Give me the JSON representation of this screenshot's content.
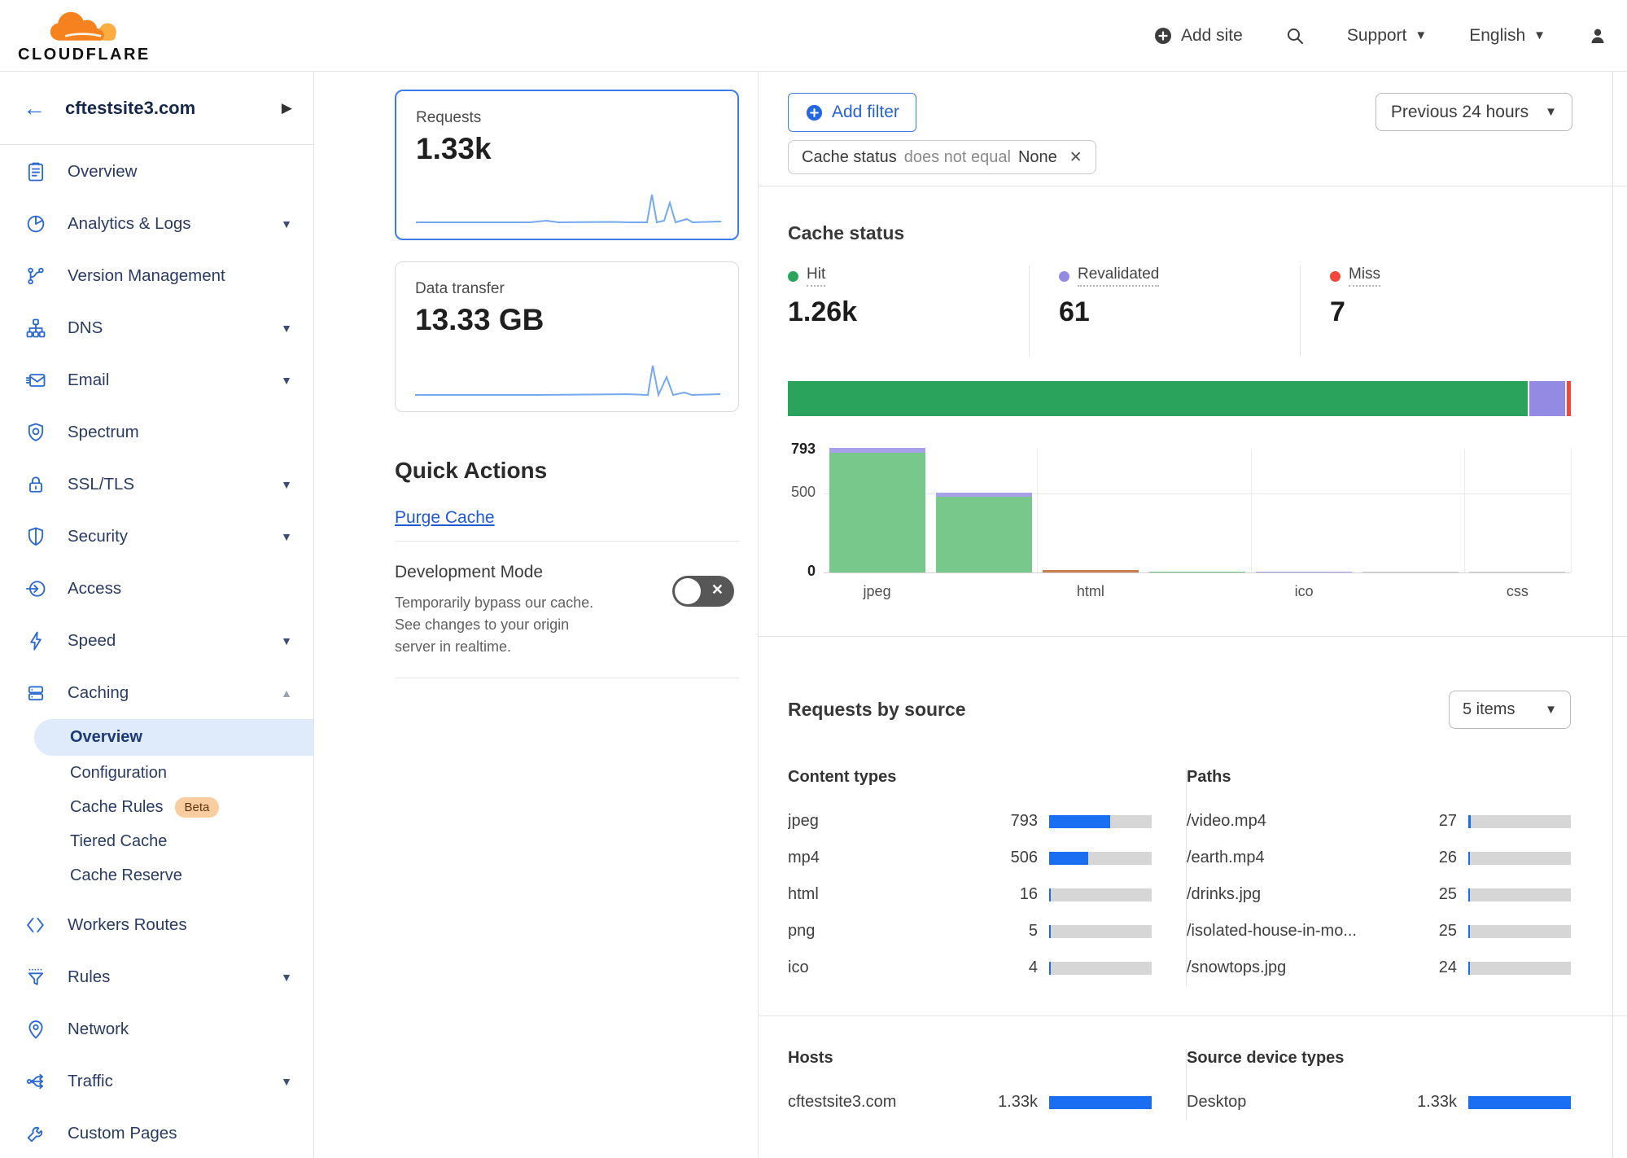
{
  "colors": {
    "accent_blue": "#2f6ede",
    "progress_blue": "#1a6ef2",
    "selected_card_border": "#3b7ce8",
    "hit_green": "#2aa45c",
    "chart_green": "#79c88b",
    "revalidated_purple": "#938ae4",
    "chart_purple": "#a7a1ea",
    "miss_red": "#f2473b",
    "other_orange": "#c97f4f",
    "none_gray": "#c9c9c9",
    "beta_badge_bg": "#f8cda0",
    "beta_badge_text": "#5f370e"
  },
  "header": {
    "logo_text": "CLOUDFLARE",
    "add_site": "Add site",
    "support": "Support",
    "language": "English"
  },
  "sidebar": {
    "site": "cftestsite3.com",
    "items": [
      {
        "label": "Overview",
        "icon": "overview"
      },
      {
        "label": "Analytics & Logs",
        "icon": "analytics",
        "caret": "down"
      },
      {
        "label": "Version Management",
        "icon": "version"
      },
      {
        "label": "DNS",
        "icon": "dns",
        "caret": "down"
      },
      {
        "label": "Email",
        "icon": "email",
        "caret": "down"
      },
      {
        "label": "Spectrum",
        "icon": "spectrum"
      },
      {
        "label": "SSL/TLS",
        "icon": "ssl",
        "caret": "down"
      },
      {
        "label": "Security",
        "icon": "security",
        "caret": "down"
      },
      {
        "label": "Access",
        "icon": "access"
      },
      {
        "label": "Speed",
        "icon": "speed",
        "caret": "down"
      },
      {
        "label": "Caching",
        "icon": "caching",
        "caret": "up",
        "sub": [
          {
            "label": "Overview",
            "selected": true
          },
          {
            "label": "Configuration"
          },
          {
            "label": "Cache Rules",
            "badge": "Beta"
          },
          {
            "label": "Tiered Cache"
          },
          {
            "label": "Cache Reserve"
          }
        ]
      },
      {
        "label": "Workers Routes",
        "icon": "workers"
      },
      {
        "label": "Rules",
        "icon": "rules",
        "caret": "down"
      },
      {
        "label": "Network",
        "icon": "network"
      },
      {
        "label": "Traffic",
        "icon": "traffic",
        "caret": "down"
      },
      {
        "label": "Custom Pages",
        "icon": "pages"
      }
    ]
  },
  "metrics": {
    "requests": {
      "label": "Requests",
      "value": "1.33k"
    },
    "data_transfer": {
      "label": "Data transfer",
      "value": "13.33 GB"
    }
  },
  "quick_actions": {
    "title": "Quick Actions",
    "purge_label": "Purge Cache",
    "dev_mode": {
      "title": "Development Mode",
      "description": "Temporarily bypass our cache. See changes to your origin server in realtime."
    }
  },
  "filters": {
    "add_filter_label": "Add filter",
    "chip": {
      "field": "Cache status",
      "operator": "does not equal",
      "value": "None"
    },
    "time_range": "Previous 24 hours"
  },
  "cache_status": {
    "title": "Cache status",
    "legend": [
      {
        "label": "Hit",
        "value": "1.26k",
        "count": 1262,
        "color": "#2aa45c"
      },
      {
        "label": "Revalidated",
        "value": "61",
        "count": 61,
        "color": "#938ae4"
      },
      {
        "label": "Miss",
        "value": "7",
        "count": 7,
        "color": "#f2473b"
      }
    ],
    "chart_data": {
      "type": "bar-stacked",
      "ylim": [
        0,
        793
      ],
      "yticks": [
        "0",
        "500",
        "793"
      ],
      "grid": true,
      "bars": [
        {
          "label": "jpeg",
          "segments": [
            {
              "name": "hit",
              "value": 760
            },
            {
              "name": "revalidated",
              "value": 33
            }
          ]
        },
        {
          "label": "",
          "segments": [
            {
              "name": "hit",
              "value": 482
            },
            {
              "name": "revalidated",
              "value": 24
            }
          ]
        },
        {
          "label": "html",
          "segments": [
            {
              "name": "other",
              "value": 16
            }
          ]
        },
        {
          "label": "",
          "segments": [
            {
              "name": "hit",
              "value": 5
            }
          ]
        },
        {
          "label": "ico",
          "segments": [
            {
              "name": "revalidated",
              "value": 4
            }
          ]
        },
        {
          "label": "",
          "segments": [
            {
              "name": "none",
              "value": 2
            }
          ]
        },
        {
          "label": "css",
          "segments": [
            {
              "name": "none",
              "value": 2
            }
          ]
        }
      ]
    }
  },
  "requests_by_source": {
    "title": "Requests by source",
    "items_label": "5 items",
    "total": 1330,
    "content_types": {
      "title": "Content types",
      "rows": [
        {
          "label": "jpeg",
          "display": "793",
          "value": 793
        },
        {
          "label": "mp4",
          "display": "506",
          "value": 506
        },
        {
          "label": "html",
          "display": "16",
          "value": 16
        },
        {
          "label": "png",
          "display": "5",
          "value": 5
        },
        {
          "label": "ico",
          "display": "4",
          "value": 4
        }
      ]
    },
    "paths": {
      "title": "Paths",
      "rows": [
        {
          "label": "/video.mp4",
          "display": "27",
          "value": 27
        },
        {
          "label": "/earth.mp4",
          "display": "26",
          "value": 26
        },
        {
          "label": "/drinks.jpg",
          "display": "25",
          "value": 25
        },
        {
          "label": "/isolated-house-in-mo...",
          "display": "25",
          "value": 25
        },
        {
          "label": "/snowtops.jpg",
          "display": "24",
          "value": 24
        }
      ]
    },
    "hosts": {
      "title": "Hosts",
      "rows": [
        {
          "label": "cftestsite3.com",
          "display": "1.33k",
          "value": 1330
        }
      ]
    },
    "device_types": {
      "title": "Source device types",
      "rows": [
        {
          "label": "Desktop",
          "display": "1.33k",
          "value": 1330
        }
      ]
    }
  }
}
